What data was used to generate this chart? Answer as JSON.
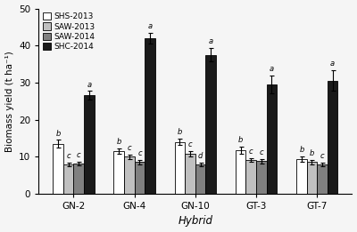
{
  "groups": [
    "GN-2",
    "GN-4",
    "GN-10",
    "GT-3",
    "GT-7"
  ],
  "series_labels": [
    "SHS-2013",
    "SAW-2013",
    "SAW-2014",
    "SHC-2014"
  ],
  "bar_colors": [
    "#ffffff",
    "#c0c0c0",
    "#808080",
    "#1a1a1a"
  ],
  "bar_edgecolor": "#000000",
  "values": [
    [
      13.5,
      7.8,
      8.2,
      26.5
    ],
    [
      11.5,
      10.0,
      8.5,
      42.0
    ],
    [
      14.0,
      10.8,
      7.8,
      37.5
    ],
    [
      11.8,
      9.0,
      8.8,
      29.5
    ],
    [
      9.3,
      8.5,
      7.8,
      30.5
    ]
  ],
  "errors": [
    [
      1.0,
      0.5,
      0.5,
      1.2
    ],
    [
      0.8,
      0.6,
      0.6,
      1.5
    ],
    [
      0.9,
      0.7,
      0.5,
      1.8
    ],
    [
      1.0,
      0.5,
      0.6,
      2.5
    ],
    [
      0.7,
      0.6,
      0.5,
      2.8
    ]
  ],
  "letters": [
    [
      "b",
      "c",
      "c",
      "a"
    ],
    [
      "b",
      "c",
      "c",
      "a"
    ],
    [
      "b",
      "c",
      "d",
      "a"
    ],
    [
      "b",
      "c",
      "c",
      "a"
    ],
    [
      "b",
      "b",
      "c",
      "a"
    ]
  ],
  "ylabel": "Biomass yield (t ha⁻¹)",
  "xlabel": "Hybrid",
  "ylim": [
    0,
    50
  ],
  "yticks": [
    0,
    10,
    20,
    30,
    40,
    50
  ],
  "figsize": [
    4.0,
    2.61
  ],
  "dpi": 100,
  "bg_color": "#f5f5f5"
}
